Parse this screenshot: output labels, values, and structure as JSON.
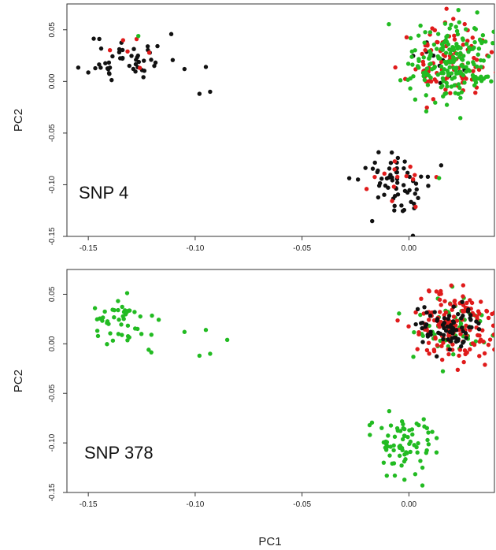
{
  "colors": {
    "black": "#111111",
    "red": "#e01b1b",
    "green": "#22bb22",
    "axis": "#333333"
  },
  "chart_data": [
    {
      "type": "scatter",
      "panel_label": "SNP 4",
      "xlabel": "",
      "ylabel": "PC2",
      "xlim": [
        -0.16,
        0.04
      ],
      "ylim": [
        -0.15,
        0.075
      ],
      "xticks": [
        -0.15,
        -0.1,
        -0.05,
        0.0
      ],
      "xtick_labels": [
        "-0.15",
        "-0.10",
        "-0.05",
        "0.00"
      ],
      "yticks": [
        -0.15,
        -0.1,
        -0.05,
        0.0,
        0.05
      ],
      "ytick_labels": [
        "-0.15",
        "-0.10",
        "-0.05",
        "0.00",
        "0.05"
      ],
      "grid": false,
      "series": [
        {
          "color": "black",
          "clusters": [
            {
              "cx": -0.132,
              "cy": 0.022,
              "sx": 0.009,
              "sy": 0.012,
              "n": 48,
              "seed": 11,
              "extra": [
                [
                  -0.105,
                  0.012
                ],
                [
                  -0.098,
                  -0.012
                ],
                [
                  -0.095,
                  0.014
                ],
                [
                  -0.093,
                  -0.01
                ]
              ]
            },
            {
              "cx": -0.004,
              "cy": -0.1,
              "sx": 0.009,
              "sy": 0.016,
              "n": 62,
              "seed": 12
            },
            {
              "cx": 0.015,
              "cy": 0.018,
              "sx": 0.008,
              "sy": 0.014,
              "n": 14,
              "seed": 13
            }
          ]
        },
        {
          "color": "red",
          "clusters": [
            {
              "cx": -0.13,
              "cy": 0.03,
              "sx": 0.006,
              "sy": 0.01,
              "n": 6,
              "seed": 21
            },
            {
              "cx": -0.005,
              "cy": -0.095,
              "sx": 0.008,
              "sy": 0.014,
              "n": 14,
              "seed": 22
            },
            {
              "cx": 0.018,
              "cy": 0.018,
              "sx": 0.009,
              "sy": 0.017,
              "n": 95,
              "seed": 23
            }
          ]
        },
        {
          "color": "green",
          "clusters": [
            {
              "cx": -0.128,
              "cy": 0.043,
              "sx": 0.001,
              "sy": 0.001,
              "n": 1,
              "seed": 31
            },
            {
              "cx": 0.012,
              "cy": -0.095,
              "sx": 0.003,
              "sy": 0.003,
              "n": 1,
              "seed": 32
            },
            {
              "cx": 0.02,
              "cy": 0.02,
              "sx": 0.01,
              "sy": 0.018,
              "n": 200,
              "seed": 33
            }
          ]
        }
      ]
    },
    {
      "type": "scatter",
      "panel_label": "SNP 378",
      "xlabel": "PC1",
      "ylabel": "PC2",
      "xlim": [
        -0.16,
        0.04
      ],
      "ylim": [
        -0.15,
        0.075
      ],
      "xticks": [
        -0.15,
        -0.1,
        -0.05,
        0.0
      ],
      "xtick_labels": [
        "-0.15",
        "-0.10",
        "-0.05",
        "0.00"
      ],
      "yticks": [
        -0.15,
        -0.1,
        -0.05,
        0.0,
        0.05
      ],
      "ytick_labels": [
        "-0.15",
        "-0.10",
        "-0.05",
        "0.00",
        "0.05"
      ],
      "grid": false,
      "series": [
        {
          "color": "green",
          "clusters": [
            {
              "cx": -0.132,
              "cy": 0.022,
              "sx": 0.009,
              "sy": 0.012,
              "n": 48,
              "seed": 41,
              "extra": [
                [
                  -0.105,
                  0.012
                ],
                [
                  -0.098,
                  -0.012
                ],
                [
                  -0.095,
                  0.014
                ],
                [
                  -0.093,
                  -0.01
                ],
                [
                  -0.085,
                  0.004
                ]
              ]
            },
            {
              "cx": -0.004,
              "cy": -0.1,
              "sx": 0.009,
              "sy": 0.016,
              "n": 75,
              "seed": 42
            },
            {
              "cx": 0.018,
              "cy": 0.018,
              "sx": 0.01,
              "sy": 0.017,
              "n": 60,
              "seed": 43
            }
          ]
        },
        {
          "color": "red",
          "clusters": [
            {
              "cx": 0.02,
              "cy": 0.018,
              "sx": 0.01,
              "sy": 0.019,
              "n": 150,
              "seed": 51
            }
          ]
        },
        {
          "color": "black",
          "clusters": [
            {
              "cx": 0.018,
              "cy": 0.018,
              "sx": 0.008,
              "sy": 0.013,
              "n": 75,
              "seed": 61
            }
          ]
        }
      ]
    }
  ]
}
